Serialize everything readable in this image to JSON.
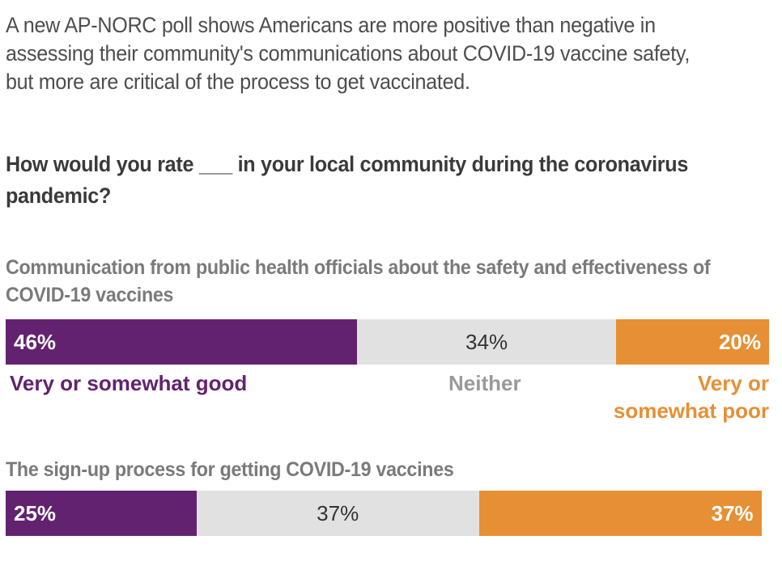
{
  "intro_text": "A new AP-NORC poll shows Americans are more positive than negative in assessing their community's communications about COVID-19 vaccine safety, but more are critical of the process to get vaccinated.",
  "question_text": "How would you rate ___ in your local community during the coronavirus pandemic?",
  "colors": {
    "good": "#63226f",
    "neither": "#e1e1e1",
    "poor": "#e78f34",
    "neither_legend": "#9a9a9a"
  },
  "chart_data": {
    "type": "bar",
    "stacked": true,
    "orientation": "horizontal",
    "categories": [
      "Communication from public health officials about the safety and effectiveness of COVID-19 vaccines",
      "The sign-up process for getting COVID-19 vaccines"
    ],
    "series": [
      {
        "name": "Very or somewhat good",
        "values": [
          46,
          25
        ],
        "labels": [
          "46%",
          "25%"
        ]
      },
      {
        "name": "Neither",
        "values": [
          34,
          37
        ],
        "labels": [
          "34%",
          "37%"
        ]
      },
      {
        "name": "Very or somewhat poor",
        "values": [
          20,
          37
        ],
        "labels": [
          "20%",
          "37%"
        ]
      }
    ],
    "xlim": [
      0,
      100
    ],
    "legend_position": "below first bar"
  }
}
